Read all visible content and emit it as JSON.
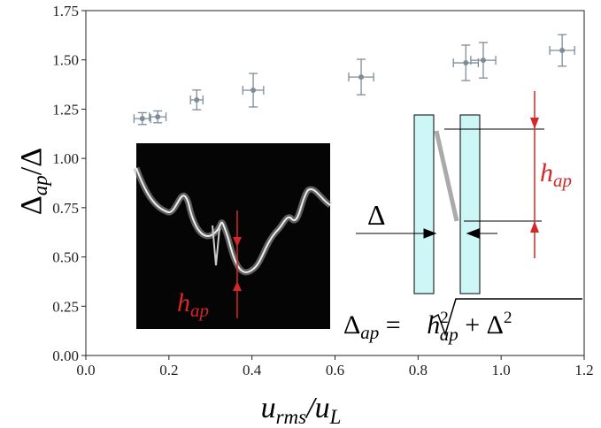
{
  "chart_data": {
    "type": "scatter",
    "xlabel": [
      "u",
      "rms",
      "/u",
      "L"
    ],
    "ylabel": [
      "Δ",
      "ap",
      "/Δ"
    ],
    "xlim": [
      0,
      1.2
    ],
    "ylim": [
      0,
      1.75
    ],
    "xticks": [
      {
        "value": 0,
        "label": "0.0"
      },
      0.2,
      0.4,
      0.6,
      0.8,
      {
        "value": 1,
        "label": "1.0"
      },
      1.2
    ],
    "yticks": [
      {
        "value": 0,
        "label": "0.00"
      },
      0.25,
      {
        "value": 0.5,
        "label": "0.50"
      },
      0.75,
      {
        "value": 1,
        "label": "1.00"
      },
      1.25,
      {
        "value": 1.5,
        "label": "1.50"
      },
      1.75
    ],
    "series": [
      {
        "color": "#7d8c9b",
        "x": [
          0.136,
          0.173,
          0.267,
          0.403,
          0.663,
          0.915,
          0.957,
          1.147
        ],
        "values": [
          1.202,
          1.211,
          1.297,
          1.346,
          1.413,
          1.485,
          1.498,
          1.548
        ],
        "xerr": [
          0.02,
          0.02,
          0.015,
          0.025,
          0.03,
          0.03,
          0.03,
          0.03
        ],
        "yerr": [
          0.03,
          0.03,
          0.05,
          0.085,
          0.09,
          0.09,
          0.09,
          0.08
        ]
      }
    ],
    "annotations": {
      "inset_h": [
        "h",
        "ap"
      ],
      "diagram_h": [
        "h",
        "ap"
      ],
      "delta": "Δ",
      "equation": [
        "Δ",
        "ap",
        " = ",
        "h",
        "2",
        "ap",
        " + Δ",
        "2"
      ]
    }
  }
}
